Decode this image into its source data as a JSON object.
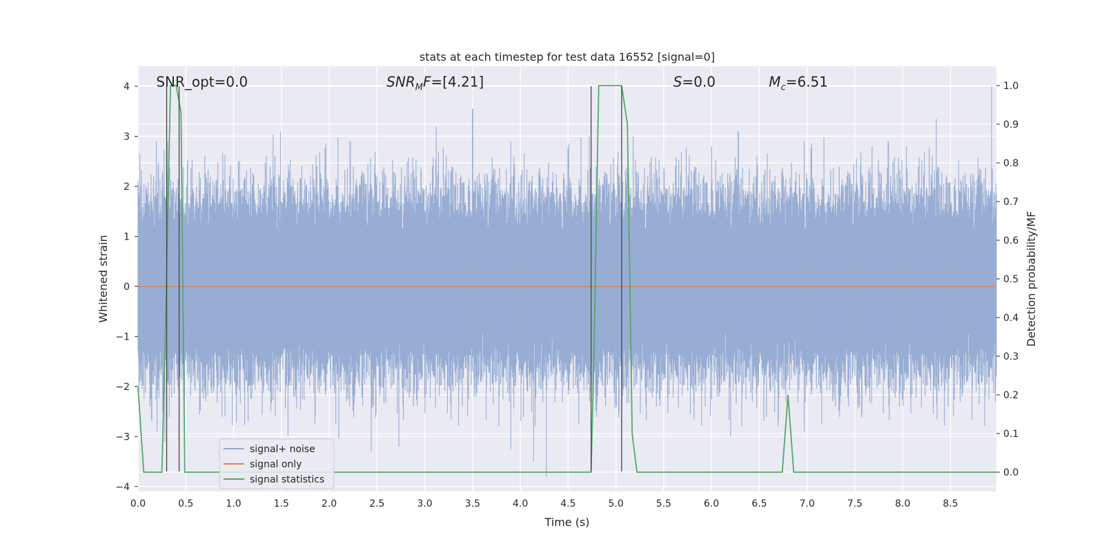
{
  "chart_data": {
    "type": "line",
    "title": "stats at each timestep for test data 16552 [signal=0]",
    "xlabel": "Time (s)",
    "ylabel_left": "Whitened strain",
    "ylabel_right": "Detection probability/MF",
    "xlim": [
      0.0,
      8.98
    ],
    "ylim_left": [
      -4.1,
      4.4
    ],
    "ylim_right": [
      -0.05,
      1.05
    ],
    "x_ticks": [
      0.0,
      0.5,
      1.0,
      1.5,
      2.0,
      2.5,
      3.0,
      3.5,
      4.0,
      4.5,
      5.0,
      5.5,
      6.0,
      6.5,
      7.0,
      7.5,
      8.0,
      8.5
    ],
    "x_tick_labels": [
      "0.0",
      "0.5",
      "1.0",
      "1.5",
      "2.0",
      "2.5",
      "3.0",
      "3.5",
      "4.0",
      "4.5",
      "5.0",
      "5.5",
      "6.0",
      "6.5",
      "7.0",
      "7.5",
      "8.0",
      "8.5"
    ],
    "y_left_ticks": [
      -4,
      -3,
      -2,
      -1,
      0,
      1,
      2,
      3,
      4
    ],
    "y_left_tick_labels": [
      "−4",
      "−3",
      "−2",
      "−1",
      "0",
      "1",
      "2",
      "3",
      "4"
    ],
    "y_right_ticks": [
      0.0,
      0.1,
      0.2,
      0.3,
      0.4,
      0.5,
      0.6,
      0.7,
      0.8,
      0.9,
      1.0
    ],
    "y_right_tick_labels": [
      "0.0",
      "0.1",
      "0.2",
      "0.3",
      "0.4",
      "0.5",
      "0.6",
      "0.7",
      "0.8",
      "0.9",
      "1.0"
    ],
    "grid": true,
    "legend_position": "lower-left",
    "annotations": [
      {
        "text": "SNR_opt=0.0",
        "x": 0.19,
        "y": 4.1
      },
      {
        "text": "SNR_MF=[4.21]",
        "x": 2.6,
        "y": 4.1
      },
      {
        "text": "S=0.0",
        "x": 5.6,
        "y": 4.1
      },
      {
        "text": "M_c=6.51",
        "x": 6.6,
        "y": 4.1
      }
    ],
    "vertical_markers": [
      {
        "x": 0.3,
        "ymin": -3.7,
        "ymax": 4.0
      },
      {
        "x": 0.43,
        "ymin": -3.7,
        "ymax": 4.0
      },
      {
        "x": 4.74,
        "ymin": -3.7,
        "ymax": 4.0
      },
      {
        "x": 5.06,
        "ymin": -3.7,
        "ymax": 4.0
      }
    ],
    "series": [
      {
        "name": "signal+ noise",
        "color": "#8fa6cf",
        "axis": "left",
        "style": "dense noise band",
        "band_typical": [
          -1.5,
          1.6
        ],
        "peaks_high": [
          [
            0.19,
            2.9
          ],
          [
            0.31,
            2.9
          ],
          [
            0.7,
            2.6
          ],
          [
            1.05,
            2.5
          ],
          [
            1.49,
            3.1
          ],
          [
            2.22,
            2.9
          ],
          [
            3.12,
            3.2
          ],
          [
            3.5,
            3.55
          ],
          [
            3.9,
            2.9
          ],
          [
            4.72,
            3.0
          ],
          [
            5.18,
            3.0
          ],
          [
            6.0,
            2.8
          ],
          [
            6.28,
            3.1
          ],
          [
            6.97,
            2.9
          ],
          [
            7.68,
            2.8
          ],
          [
            7.85,
            2.9
          ],
          [
            8.04,
            2.8
          ],
          [
            8.35,
            3.35
          ],
          [
            8.93,
            4.0
          ]
        ],
        "peaks_low": [
          [
            0.2,
            -2.9
          ],
          [
            0.28,
            -3.1
          ],
          [
            0.91,
            -2.6
          ],
          [
            1.57,
            -3.0
          ],
          [
            2.1,
            -3.05
          ],
          [
            2.44,
            -3.3
          ],
          [
            2.73,
            -3.2
          ],
          [
            3.9,
            -3.25
          ],
          [
            4.14,
            -3.5
          ],
          [
            4.27,
            -3.8
          ],
          [
            5.06,
            -3.15
          ],
          [
            6.2,
            -3.0
          ],
          [
            6.7,
            -2.7
          ],
          [
            6.97,
            -2.9
          ],
          [
            8.6,
            -2.3
          ]
        ],
        "seed": 16552
      },
      {
        "name": "signal only",
        "color": "#dd8452",
        "axis": "left",
        "x": [
          0.0,
          8.98
        ],
        "y": [
          0.0,
          0.0
        ]
      },
      {
        "name": "signal statistics",
        "color": "#55a868",
        "axis": "right",
        "x": [
          0.0,
          0.06,
          0.25,
          0.29,
          0.34,
          0.4,
          0.45,
          0.49,
          0.53,
          4.52,
          4.74,
          4.77,
          4.82,
          5.06,
          5.12,
          5.17,
          5.22,
          5.3,
          6.74,
          6.8,
          6.86,
          8.98
        ],
        "y": [
          0.22,
          0.0,
          0.0,
          0.4,
          1.0,
          1.0,
          0.93,
          0.0,
          0.0,
          0.0,
          0.0,
          0.3,
          1.0,
          1.0,
          0.9,
          0.1,
          0.0,
          0.0,
          0.0,
          0.2,
          0.0,
          0.0
        ]
      }
    ]
  }
}
